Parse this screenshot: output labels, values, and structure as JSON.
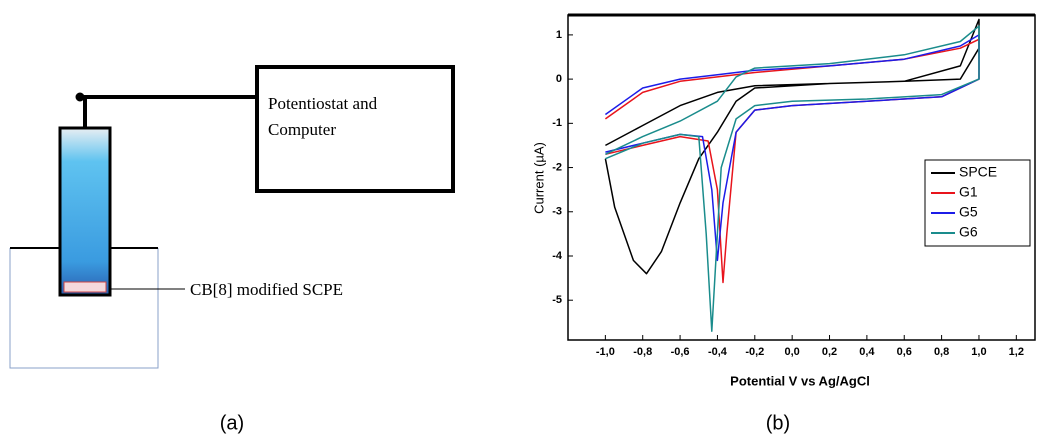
{
  "chart_data": {
    "type": "line",
    "title_y": "Current (µA)",
    "title_x": "Potential V vs Ag/AgCl",
    "xlim": [
      -1.2,
      1.3
    ],
    "ylim": [
      -5.9,
      1.45
    ],
    "xticks": [
      {
        "value": -1.0,
        "label": "-1,0"
      },
      {
        "value": -0.8,
        "label": "-0,8"
      },
      {
        "value": -0.6,
        "label": "-0,6"
      },
      {
        "value": -0.4,
        "label": "-0,4"
      },
      {
        "value": -0.2,
        "label": "-0,2"
      },
      {
        "value": 0.0,
        "label": "0,0"
      },
      {
        "value": 0.2,
        "label": "0,2"
      },
      {
        "value": 0.4,
        "label": "0,4"
      },
      {
        "value": 0.6,
        "label": "0,6"
      },
      {
        "value": 0.8,
        "label": "0,8"
      },
      {
        "value": 1.0,
        "label": "1,0"
      },
      {
        "value": 1.2,
        "label": "1,2"
      }
    ],
    "yticks": [
      1,
      0,
      -1,
      -2,
      -3,
      -4,
      -5
    ],
    "series": [
      {
        "name": "SPCE",
        "color": "#000000",
        "x": [
          -1.0,
          -0.8,
          -0.6,
          -0.4,
          -0.2,
          0.2,
          0.6,
          0.9,
          1.0,
          1.0,
          0.9,
          0.6,
          0.2,
          -0.2,
          -0.3,
          -0.4,
          -0.5,
          -0.6,
          -0.7,
          -0.78,
          -0.85,
          -0.95,
          -1.0
        ],
        "values": [
          -1.5,
          -1.05,
          -0.6,
          -0.3,
          -0.15,
          -0.1,
          -0.05,
          0.3,
          1.35,
          0.7,
          0.0,
          -0.05,
          -0.1,
          -0.2,
          -0.5,
          -1.2,
          -1.8,
          -2.8,
          -3.9,
          -4.4,
          -4.1,
          -2.9,
          -1.8
        ]
      },
      {
        "name": "G1",
        "color": "#e8141c",
        "x": [
          -1.0,
          -0.8,
          -0.6,
          -0.4,
          -0.2,
          0.2,
          0.6,
          0.9,
          1.0,
          1.0,
          0.8,
          0.4,
          0.0,
          -0.2,
          -0.3,
          -0.35,
          -0.37,
          -0.4,
          -0.45,
          -0.6,
          -0.8,
          -1.0
        ],
        "values": [
          -0.9,
          -0.3,
          -0.05,
          0.05,
          0.15,
          0.3,
          0.45,
          0.7,
          0.9,
          0.0,
          -0.4,
          -0.5,
          -0.6,
          -0.7,
          -1.2,
          -3.5,
          -4.6,
          -2.5,
          -1.4,
          -1.3,
          -1.5,
          -1.7
        ]
      },
      {
        "name": "G5",
        "color": "#1c1ce8",
        "x": [
          -1.0,
          -0.8,
          -0.6,
          -0.4,
          -0.2,
          0.2,
          0.6,
          0.9,
          1.0,
          1.0,
          0.8,
          0.4,
          0.0,
          -0.2,
          -0.3,
          -0.37,
          -0.4,
          -0.43,
          -0.48,
          -0.6,
          -0.8,
          -1.0
        ],
        "values": [
          -0.8,
          -0.2,
          0.0,
          0.1,
          0.2,
          0.3,
          0.45,
          0.75,
          1.0,
          0.0,
          -0.4,
          -0.5,
          -0.6,
          -0.7,
          -1.2,
          -2.8,
          -4.1,
          -2.5,
          -1.3,
          -1.25,
          -1.45,
          -1.65
        ]
      },
      {
        "name": "G6",
        "color": "#1a8c8c",
        "x": [
          -1.0,
          -0.8,
          -0.6,
          -0.4,
          -0.3,
          -0.2,
          0.2,
          0.6,
          0.9,
          1.0,
          1.0,
          0.8,
          0.4,
          0.0,
          -0.2,
          -0.3,
          -0.38,
          -0.43,
          -0.46,
          -0.5,
          -0.6,
          -0.8,
          -1.0
        ],
        "values": [
          -1.7,
          -1.3,
          -0.95,
          -0.5,
          0.05,
          0.25,
          0.35,
          0.55,
          0.85,
          1.2,
          0.0,
          -0.35,
          -0.45,
          -0.5,
          -0.6,
          -0.9,
          -2.0,
          -5.7,
          -3.5,
          -1.3,
          -1.25,
          -1.45,
          -1.8
        ]
      }
    ]
  },
  "diagram": {
    "box_lines": [
      "Potentiostat and",
      "Computer"
    ],
    "electrode_label": "CB[8] modified SCPE"
  },
  "captions": [
    "(a)",
    "(b)"
  ]
}
